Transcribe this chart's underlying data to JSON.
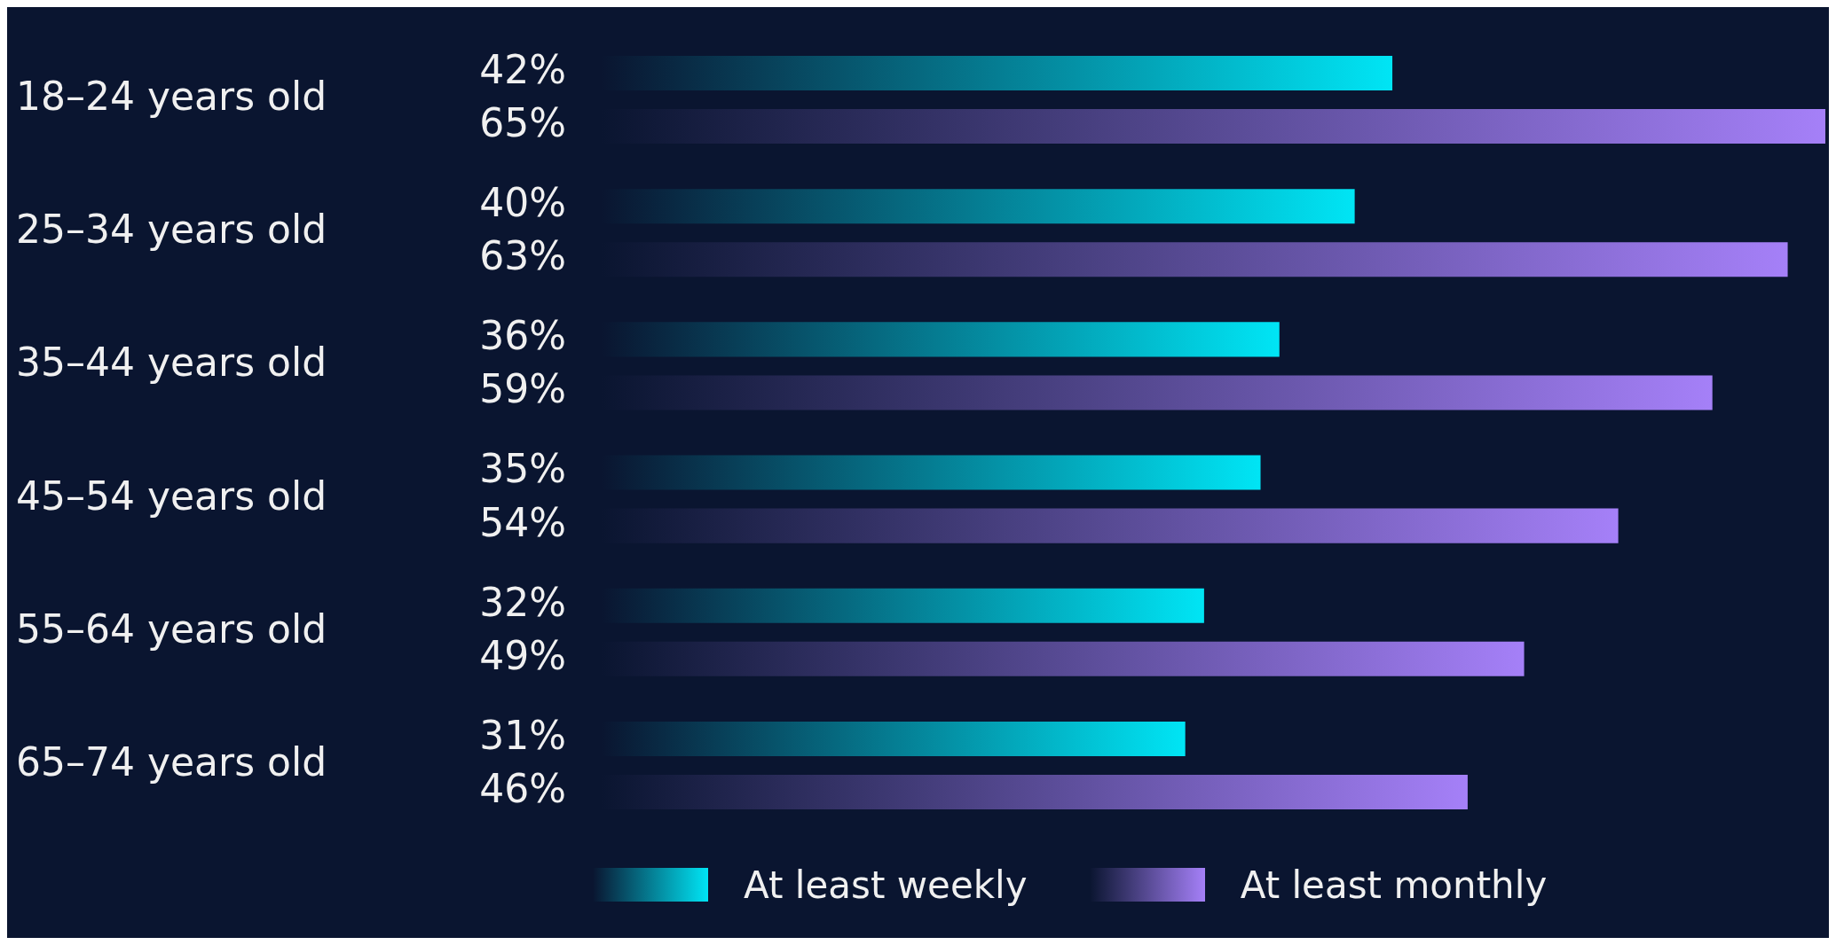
{
  "chart_data": {
    "type": "bar",
    "orientation": "horizontal",
    "categories": [
      "18–24 years old",
      "25–34 years old",
      "35–44 years old",
      "45–54 years old",
      "55–64 years old",
      "65–74 years old"
    ],
    "series": [
      {
        "name": "At least weekly",
        "color": "#00e5f5",
        "values": [
          42,
          40,
          36,
          35,
          32,
          31
        ],
        "value_labels": [
          "42%",
          "40%",
          "36%",
          "35%",
          "32%",
          "31%"
        ]
      },
      {
        "name": "At least monthly",
        "color": "#a580f8",
        "values": [
          65,
          63,
          59,
          54,
          49,
          46
        ],
        "value_labels": [
          "65%",
          "63%",
          "59%",
          "54%",
          "49%",
          "46%"
        ]
      }
    ],
    "legend": "bottom"
  }
}
